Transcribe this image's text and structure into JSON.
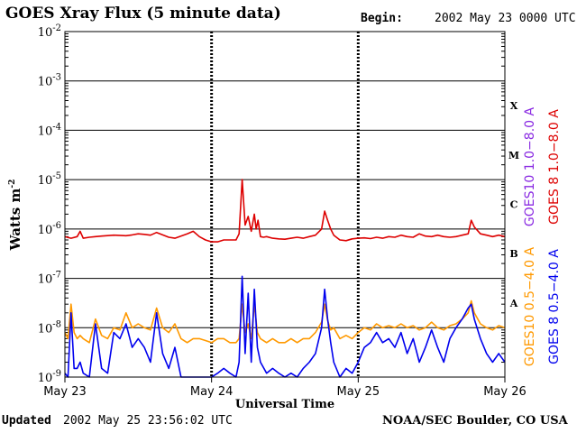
{
  "header": {
    "title": "GOES Xray Flux (5 minute data)",
    "begin_label": "Begin:",
    "begin_value": "2002 May 23 0000 UTC"
  },
  "footer": {
    "updated_label": "Updated",
    "updated_value": "2002 May 25 23:56:02 UTC",
    "credit": "NOAA/SEC Boulder, CO USA"
  },
  "colors": {
    "goes8_long": "#dd0000",
    "goes10_long": "#8a2be2",
    "goes8_short": "#0000ee",
    "goes10_short": "#ff9900"
  },
  "chart_data": {
    "type": "line",
    "title": "GOES Xray Flux (5 minute data)",
    "xlabel": "Universal Time",
    "ylabel": "Watts m",
    "ylabel_superscript": "-2",
    "yscale": "log",
    "ylim": [
      1e-09,
      0.01
    ],
    "y_ticks": [
      {
        "base": "10",
        "exp": "-2",
        "value": 0.01
      },
      {
        "base": "10",
        "exp": "-3",
        "value": 0.001
      },
      {
        "base": "10",
        "exp": "-4",
        "value": 0.0001
      },
      {
        "base": "10",
        "exp": "-5",
        "value": 1e-05
      },
      {
        "base": "10",
        "exp": "-6",
        "value": 1e-06
      },
      {
        "base": "10",
        "exp": "-7",
        "value": 1e-07
      },
      {
        "base": "10",
        "exp": "-8",
        "value": 1e-08
      },
      {
        "base": "10",
        "exp": "-9",
        "value": 1e-09
      }
    ],
    "xlim": [
      0,
      72
    ],
    "x_unit": "hours since 2002 May 23 0000 UTC",
    "x_ticks": [
      {
        "label": "May 23",
        "value": 0
      },
      {
        "label": "May 24",
        "value": 24
      },
      {
        "label": "May 25",
        "value": 48
      },
      {
        "label": "May 26",
        "value": 72
      }
    ],
    "flare_classes": [
      {
        "label": "X",
        "value": 0.000316
      },
      {
        "label": "M",
        "value": 3.16e-05
      },
      {
        "label": "C",
        "value": 3.16e-06
      },
      {
        "label": "B",
        "value": 3.16e-07
      },
      {
        "label": "A",
        "value": 3.16e-08
      }
    ],
    "grid": "horizontal",
    "legend_placement": "right",
    "legend": [
      {
        "label": "GOES10 1.0−8.0 A",
        "color": "#8a2be2"
      },
      {
        "label": "GOES 8 1.0−8.0 A",
        "color": "#dd0000"
      },
      {
        "label": "GOES10 0.5−4.0 A",
        "color": "#ff9900"
      },
      {
        "label": "GOES 8 0.5−4.0 A",
        "color": "#0000ee"
      }
    ],
    "series": [
      {
        "name": "GOES 8 1.0−8.0 A",
        "color": "#dd0000",
        "x": [
          0,
          1,
          2,
          2.5,
          3,
          4,
          5,
          6,
          8,
          10,
          11,
          12,
          13,
          14,
          15,
          17,
          18,
          20,
          21,
          22,
          23,
          24,
          25,
          26,
          27,
          28,
          28.5,
          29,
          29.5,
          30,
          30.5,
          31,
          31.3,
          31.6,
          32,
          32.5,
          33,
          34,
          35,
          36,
          37,
          38,
          39,
          40,
          41,
          42,
          42.5,
          43,
          43.5,
          44,
          45,
          46,
          47,
          48,
          49,
          50,
          51,
          52,
          53,
          54,
          55,
          56,
          57,
          58,
          59,
          60,
          61,
          62,
          63,
          64,
          65,
          66,
          66.5,
          67,
          68,
          69,
          70,
          71,
          72
        ],
        "values": [
          7e-07,
          6.5e-07,
          7e-07,
          9e-07,
          6.5e-07,
          6.8e-07,
          7e-07,
          7.2e-07,
          7.5e-07,
          7.3e-07,
          7.6e-07,
          8e-07,
          7.8e-07,
          7.5e-07,
          8.5e-07,
          6.8e-07,
          6.5e-07,
          8e-07,
          9e-07,
          7e-07,
          6e-07,
          5.5e-07,
          5.5e-07,
          6e-07,
          6e-07,
          6e-07,
          8e-07,
          1e-05,
          1.2e-06,
          1.8e-06,
          9e-07,
          2e-06,
          1e-06,
          1.5e-06,
          7e-07,
          6.8e-07,
          7e-07,
          6.5e-07,
          6.3e-07,
          6.2e-07,
          6.5e-07,
          6.8e-07,
          6.5e-07,
          7e-07,
          7.5e-07,
          1e-06,
          2.3e-06,
          1.5e-06,
          1e-06,
          7.5e-07,
          6e-07,
          5.8e-07,
          6.3e-07,
          6.5e-07,
          6.6e-07,
          6.4e-07,
          6.8e-07,
          6.5e-07,
          7e-07,
          6.8e-07,
          7.5e-07,
          7e-07,
          6.8e-07,
          8e-07,
          7.2e-07,
          7e-07,
          7.5e-07,
          7e-07,
          6.8e-07,
          7e-07,
          7.5e-07,
          8e-07,
          1.5e-06,
          1.1e-06,
          8e-07,
          7.5e-07,
          7e-07,
          7.5e-07,
          7e-07
        ]
      },
      {
        "name": "GOES10 0.5−4.0 A",
        "color": "#ff9900",
        "x": [
          0,
          0.5,
          1,
          1.5,
          2,
          2.5,
          3,
          4,
          5,
          6,
          7,
          8,
          9,
          10,
          11,
          12,
          13,
          14,
          15,
          16,
          17,
          18,
          19,
          20,
          21,
          22,
          23,
          24,
          25,
          26,
          27,
          28,
          28.5,
          29,
          29.5,
          30,
          30.5,
          31,
          31.5,
          32,
          33,
          34,
          35,
          36,
          37,
          38,
          39,
          40,
          41,
          42,
          42.5,
          43,
          43.5,
          44,
          45,
          46,
          47,
          48,
          49,
          50,
          51,
          52,
          53,
          54,
          55,
          56,
          57,
          58,
          59,
          60,
          61,
          62,
          63,
          64,
          65,
          66,
          66.5,
          67,
          68,
          69,
          70,
          71,
          72
        ],
        "values": [
          8e-09,
          6e-09,
          3e-08,
          8e-09,
          6e-09,
          7e-09,
          6e-09,
          5e-09,
          1.5e-08,
          7e-09,
          6e-09,
          1e-08,
          9e-09,
          2e-08,
          1e-08,
          1.2e-08,
          1e-08,
          9e-09,
          2.5e-08,
          1e-08,
          8e-09,
          1.2e-08,
          6e-09,
          5e-09,
          6e-09,
          6e-09,
          5.5e-09,
          5e-09,
          6e-09,
          6e-09,
          5e-09,
          5e-09,
          6e-09,
          3e-08,
          8e-09,
          1.2e-08,
          6e-09,
          3e-08,
          8e-09,
          6e-09,
          5e-09,
          6e-09,
          5e-09,
          5e-09,
          6e-09,
          5e-09,
          6e-09,
          6e-09,
          8e-09,
          1.3e-08,
          3e-08,
          1.4e-08,
          9e-09,
          1e-08,
          6e-09,
          7e-09,
          6e-09,
          8e-09,
          1e-08,
          9e-09,
          1.2e-08,
          1e-08,
          1.1e-08,
          1e-08,
          1.2e-08,
          1e-08,
          1.1e-08,
          9e-09,
          1e-08,
          1.3e-08,
          1e-08,
          9e-09,
          1.1e-08,
          1.2e-08,
          1.5e-08,
          2e-08,
          3.5e-08,
          2e-08,
          1.2e-08,
          1e-08,
          9e-09,
          1.1e-08,
          1e-08
        ]
      },
      {
        "name": "GOES 8 0.5−4.0 A",
        "color": "#0000ee",
        "x": [
          0,
          0.5,
          1,
          1.5,
          2,
          2.5,
          3,
          4,
          5,
          6,
          7,
          8,
          9,
          10,
          11,
          12,
          13,
          14,
          15,
          16,
          17,
          18,
          19,
          20,
          21,
          22,
          23,
          24,
          25,
          26,
          27,
          28,
          28.5,
          29,
          29.5,
          30,
          30.5,
          31,
          31.5,
          32,
          33,
          34,
          35,
          36,
          37,
          38,
          39,
          40,
          41,
          42,
          42.5,
          43,
          43.5,
          44,
          45,
          46,
          47,
          48,
          49,
          50,
          51,
          52,
          53,
          54,
          55,
          56,
          57,
          58,
          59,
          60,
          61,
          62,
          63,
          64,
          65,
          66,
          66.5,
          67,
          68,
          69,
          70,
          71,
          72
        ],
        "values": [
          1.2e-09,
          1e-09,
          2e-08,
          1.5e-09,
          1.5e-09,
          2e-09,
          1.2e-09,
          1e-09,
          1.2e-08,
          1.5e-09,
          1.2e-09,
          8e-09,
          6e-09,
          1.2e-08,
          4e-09,
          6e-09,
          4e-09,
          2e-09,
          2e-08,
          3e-09,
          1.5e-09,
          4e-09,
          1e-09,
          1e-09,
          1e-09,
          1e-09,
          1e-09,
          1e-09,
          1.2e-09,
          1.5e-09,
          1.2e-09,
          1e-09,
          2e-09,
          1.1e-07,
          3e-09,
          5e-08,
          2e-09,
          6e-08,
          4e-09,
          2e-09,
          1.2e-09,
          1.5e-09,
          1.2e-09,
          1e-09,
          1.2e-09,
          1e-09,
          1.5e-09,
          2e-09,
          3e-09,
          1e-08,
          6e-08,
          1.5e-08,
          5e-09,
          2e-09,
          1e-09,
          1.5e-09,
          1.2e-09,
          2e-09,
          4e-09,
          5e-09,
          8e-09,
          5e-09,
          6e-09,
          4e-09,
          8e-09,
          3e-09,
          6e-09,
          2e-09,
          4e-09,
          9e-09,
          4e-09,
          2e-09,
          6e-09,
          1e-08,
          1.5e-08,
          2.5e-08,
          3e-08,
          1.5e-08,
          6e-09,
          3e-09,
          2e-09,
          3e-09,
          2e-09
        ]
      }
    ]
  }
}
